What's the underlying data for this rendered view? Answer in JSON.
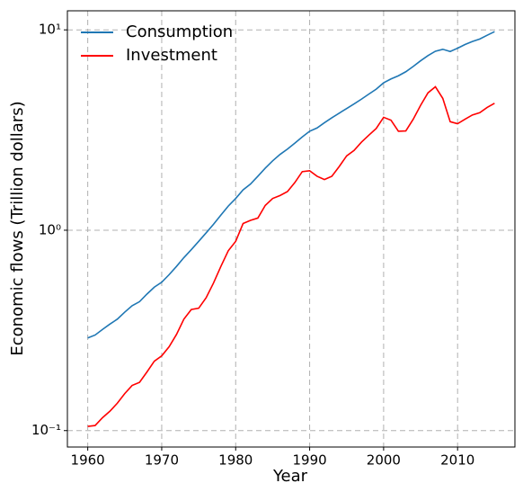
{
  "chart_data": {
    "type": "line",
    "x_label": "Year",
    "y_label": "Economic flows (Trillion dollars)",
    "x": [
      1960,
      1961,
      1962,
      1963,
      1964,
      1965,
      1966,
      1967,
      1968,
      1969,
      1970,
      1971,
      1972,
      1973,
      1974,
      1975,
      1976,
      1977,
      1978,
      1979,
      1980,
      1981,
      1982,
      1983,
      1984,
      1985,
      1986,
      1987,
      1988,
      1989,
      1990,
      1991,
      1992,
      1993,
      1994,
      1995,
      1996,
      1997,
      1998,
      1999,
      2000,
      2001,
      2002,
      2003,
      2004,
      2005,
      2006,
      2007,
      2008,
      2009,
      2010,
      2011,
      2012,
      2013,
      2014,
      2015
    ],
    "series": [
      {
        "name": "Consumption",
        "color": "#1f77b4",
        "values": [
          0.29,
          0.3,
          0.32,
          0.34,
          0.36,
          0.39,
          0.42,
          0.44,
          0.48,
          0.52,
          0.55,
          0.6,
          0.66,
          0.73,
          0.8,
          0.88,
          0.97,
          1.07,
          1.19,
          1.32,
          1.44,
          1.59,
          1.7,
          1.86,
          2.04,
          2.22,
          2.39,
          2.54,
          2.72,
          2.92,
          3.12,
          3.24,
          3.44,
          3.64,
          3.84,
          4.05,
          4.27,
          4.51,
          4.78,
          5.06,
          5.44,
          5.69,
          5.9,
          6.18,
          6.57,
          7.01,
          7.44,
          7.82,
          8.0,
          7.8,
          8.1,
          8.45,
          8.75,
          9.0,
          9.4,
          9.8
        ]
      },
      {
        "name": "Investment",
        "color": "#ff0000",
        "values": [
          0.105,
          0.106,
          0.116,
          0.125,
          0.137,
          0.153,
          0.168,
          0.174,
          0.196,
          0.222,
          0.236,
          0.262,
          0.302,
          0.36,
          0.402,
          0.408,
          0.46,
          0.545,
          0.66,
          0.79,
          0.88,
          1.08,
          1.12,
          1.15,
          1.33,
          1.44,
          1.49,
          1.56,
          1.73,
          1.96,
          1.98,
          1.86,
          1.79,
          1.86,
          2.08,
          2.35,
          2.5,
          2.75,
          2.98,
          3.22,
          3.66,
          3.54,
          3.12,
          3.13,
          3.58,
          4.2,
          4.85,
          5.2,
          4.55,
          3.48,
          3.4,
          3.58,
          3.76,
          3.86,
          4.1,
          4.3
        ]
      }
    ],
    "xlim": [
      1957.25,
      2017.75
    ],
    "xticks": [
      1960,
      1970,
      1980,
      1990,
      2000,
      2010
    ],
    "ylim": [
      0.0828,
      12.45
    ],
    "y_scale": "log",
    "yticks": [
      {
        "value": 0.1,
        "label": "10⁻¹"
      },
      {
        "value": 1,
        "label": "10⁰"
      },
      {
        "value": 10,
        "label": "10¹"
      }
    ],
    "grid": true,
    "legend": "upper left"
  }
}
